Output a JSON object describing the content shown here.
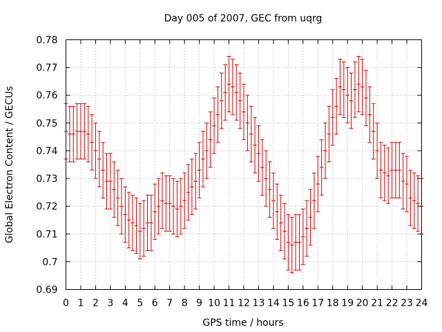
{
  "chart_data": {
    "type": "line",
    "title": "Day 005 of 2007, GEC from uqrg",
    "xlabel": "GPS time / hours",
    "ylabel": "Global Electron Content / GECUs",
    "xlim": [
      0,
      24
    ],
    "ylim": [
      0.69,
      0.78
    ],
    "grid": true,
    "x_ticks": [
      "0",
      "1",
      "2",
      "3",
      "4",
      "5",
      "6",
      "7",
      "8",
      "9",
      "10",
      "11",
      "12",
      "13",
      "14",
      "15",
      "16",
      "17",
      "18",
      "19",
      "20",
      "21",
      "22",
      "23",
      "24"
    ],
    "y_ticks": [
      "0.69",
      "0.7",
      "0.71",
      "0.72",
      "0.73",
      "0.74",
      "0.75",
      "0.76",
      "0.77",
      "0.78"
    ],
    "series": [
      {
        "color": "#cc0000",
        "error_bar": 0.01,
        "x": [
          0,
          0.25,
          0.5,
          0.75,
          1,
          1.25,
          1.5,
          1.75,
          2,
          2.25,
          2.5,
          2.75,
          3,
          3.25,
          3.5,
          3.75,
          4,
          4.25,
          4.5,
          4.75,
          5,
          5.25,
          5.5,
          5.75,
          6,
          6.25,
          6.5,
          6.75,
          7,
          7.25,
          7.5,
          7.75,
          8,
          8.25,
          8.5,
          8.75,
          9,
          9.25,
          9.5,
          9.75,
          10,
          10.25,
          10.5,
          10.75,
          11,
          11.25,
          11.5,
          11.75,
          12,
          12.25,
          12.5,
          12.75,
          13,
          13.25,
          13.5,
          13.75,
          14,
          14.25,
          14.5,
          14.75,
          15,
          15.25,
          15.5,
          15.75,
          16,
          16.25,
          16.5,
          16.75,
          17,
          17.25,
          17.5,
          17.75,
          18,
          18.25,
          18.5,
          18.75,
          19,
          19.25,
          19.5,
          19.75,
          20,
          20.25,
          20.5,
          20.75,
          21,
          21.25,
          21.5,
          21.75,
          22,
          22.25,
          22.5,
          22.75,
          23,
          23.25,
          23.5,
          23.75,
          24
        ],
        "y": [
          0.747,
          0.746,
          0.746,
          0.747,
          0.747,
          0.747,
          0.746,
          0.743,
          0.74,
          0.737,
          0.733,
          0.729,
          0.729,
          0.726,
          0.723,
          0.72,
          0.717,
          0.715,
          0.714,
          0.713,
          0.711,
          0.712,
          0.714,
          0.714,
          0.718,
          0.72,
          0.722,
          0.721,
          0.721,
          0.72,
          0.719,
          0.72,
          0.722,
          0.725,
          0.727,
          0.729,
          0.733,
          0.737,
          0.74,
          0.744,
          0.749,
          0.753,
          0.758,
          0.761,
          0.764,
          0.763,
          0.761,
          0.758,
          0.754,
          0.75,
          0.746,
          0.742,
          0.739,
          0.734,
          0.73,
          0.726,
          0.722,
          0.718,
          0.714,
          0.711,
          0.707,
          0.706,
          0.707,
          0.707,
          0.709,
          0.712,
          0.716,
          0.722,
          0.728,
          0.734,
          0.74,
          0.746,
          0.752,
          0.756,
          0.763,
          0.762,
          0.76,
          0.758,
          0.762,
          0.764,
          0.763,
          0.759,
          0.753,
          0.747,
          0.74,
          0.733,
          0.732,
          0.731,
          0.733,
          0.733,
          0.733,
          0.729,
          0.728,
          0.723,
          0.722,
          0.721,
          0.72
        ]
      }
    ]
  }
}
